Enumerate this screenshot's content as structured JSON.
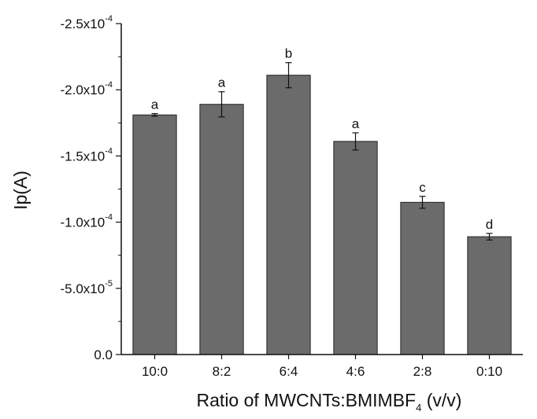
{
  "chart_data": {
    "type": "bar",
    "xlabel": "Ratio of MWCNTs:BMIMBF",
    "xlabel_subscript": "4",
    "xlabel_suffix": " (v/v)",
    "ylabel": "Ip(A)",
    "categories": [
      "10:0",
      "8:2",
      "6:4",
      "4:6",
      "2:8",
      "0:10"
    ],
    "values": [
      -0.000181,
      -0.000189,
      -0.000211,
      -0.000161,
      -0.000115,
      -8.9e-05
    ],
    "errors": [
      1e-06,
      9.5e-06,
      9.5e-06,
      6.5e-06,
      4.5e-06,
      2.5e-06
    ],
    "significance_labels": [
      "a",
      "a",
      "b",
      "a",
      "c",
      "d"
    ],
    "ylim": [
      0,
      -0.00025
    ],
    "y_ticks": [
      {
        "value": 0,
        "base": "0.0",
        "exp": ""
      },
      {
        "value": -5e-05,
        "base": "-5.0x10",
        "exp": "-5"
      },
      {
        "value": -0.0001,
        "base": "-1.0x10",
        "exp": "-4"
      },
      {
        "value": -0.00015,
        "base": "-1.5x10",
        "exp": "-4"
      },
      {
        "value": -0.0002,
        "base": "-2.0x10",
        "exp": "-4"
      },
      {
        "value": -0.00025,
        "base": "-2.5x10",
        "exp": "-4"
      }
    ],
    "bar_color": "#6b6b6b",
    "grid": false
  }
}
